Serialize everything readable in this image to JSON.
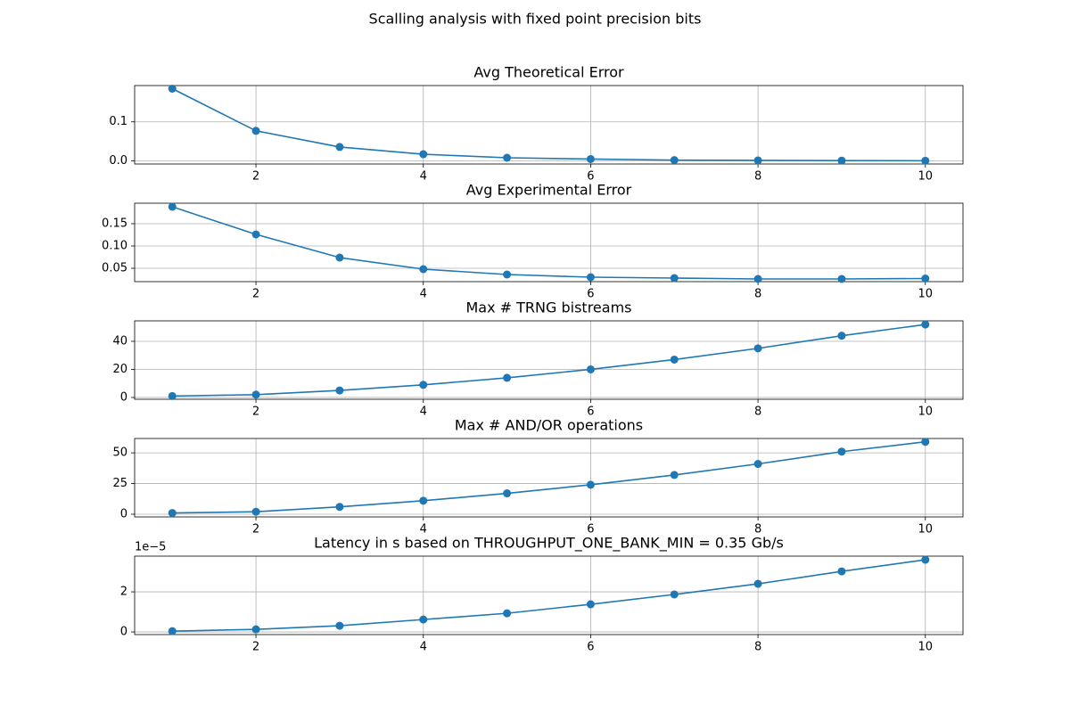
{
  "title": "Scalling analysis with fixed point precision bits",
  "chart_data": [
    {
      "type": "line",
      "title": "Avg Theoretical Error",
      "color": "#1f77b4",
      "grid": true,
      "marker": "o",
      "x": [
        1,
        2,
        3,
        4,
        5,
        6,
        7,
        8,
        9,
        10
      ],
      "values": [
        0.185,
        0.077,
        0.0356,
        0.017,
        0.008,
        0.0046,
        0.002,
        0.0012,
        0.0007,
        0.0003
      ],
      "xlim": [
        0.55,
        10.45
      ],
      "xticks": [
        2,
        4,
        6,
        8,
        10
      ],
      "ylim": [
        -0.008,
        0.193
      ],
      "yticks": [
        {
          "value": 0,
          "label": "0.0"
        },
        0.1
      ]
    },
    {
      "type": "line",
      "title": "Avg Experimental Error",
      "color": "#1f77b4",
      "grid": true,
      "marker": "o",
      "x": [
        1,
        2,
        3,
        4,
        5,
        6,
        7,
        8,
        9,
        10
      ],
      "values": [
        0.188,
        0.126,
        0.074,
        0.048,
        0.036,
        0.03,
        0.028,
        0.026,
        0.026,
        0.027
      ],
      "xlim": [
        0.55,
        10.45
      ],
      "xticks": [
        2,
        4,
        6,
        8,
        10
      ],
      "ylim": [
        0.02,
        0.196
      ],
      "yticks": [
        0.05,
        {
          "value": 0.1,
          "label": "0.10"
        },
        0.15
      ]
    },
    {
      "type": "line",
      "title": "Max # TRNG bistreams",
      "color": "#1f77b4",
      "grid": true,
      "marker": "o",
      "x": [
        1,
        2,
        3,
        4,
        5,
        6,
        7,
        8,
        9,
        10
      ],
      "values": [
        1,
        2,
        5,
        9,
        14,
        20,
        27,
        35,
        44,
        52
      ],
      "xlim": [
        0.55,
        10.45
      ],
      "xticks": [
        2,
        4,
        6,
        8,
        10
      ],
      "ylim": [
        -1.3,
        54.6
      ],
      "yticks": [
        0,
        20,
        40
      ]
    },
    {
      "type": "line",
      "title": "Max # AND/OR operations",
      "color": "#1f77b4",
      "grid": true,
      "marker": "o",
      "x": [
        1,
        2,
        3,
        4,
        5,
        6,
        7,
        8,
        9,
        10
      ],
      "values": [
        1,
        2,
        6,
        11,
        17,
        24,
        32,
        41,
        51,
        59
      ],
      "xlim": [
        0.55,
        10.45
      ],
      "xticks": [
        2,
        4,
        6,
        8,
        10
      ],
      "ylim": [
        -2.2,
        61.7
      ],
      "yticks": [
        0,
        25,
        50
      ]
    },
    {
      "type": "line",
      "title": "Latency in s based on THROUGHPUT_ONE_BANK_MIN = 0.35 Gb/s",
      "color": "#1f77b4",
      "grid": true,
      "marker": "o",
      "x": [
        1,
        2,
        3,
        4,
        5,
        6,
        7,
        8,
        9,
        10
      ],
      "values": [
        4e-07,
        1.3e-06,
        3.1e-06,
        6.2e-06,
        9.3e-06,
        1.38e-05,
        1.87e-05,
        2.4e-05,
        3.02e-05,
        3.6e-05
      ],
      "xlim": [
        0.55,
        10.45
      ],
      "xticks": [
        2,
        4,
        6,
        8,
        10
      ],
      "ylim": [
        -1.3e-06,
        3.78e-05
      ],
      "yticks": [
        0,
        {
          "value": 2e-05,
          "label": "2"
        }
      ],
      "y_offset_label": "1e−5"
    }
  ]
}
